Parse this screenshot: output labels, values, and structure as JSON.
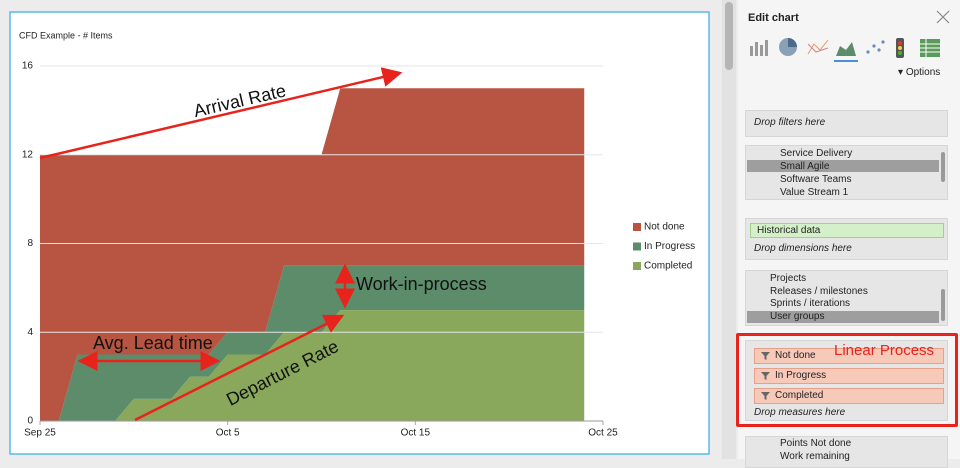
{
  "chart_data": {
    "type": "stacked_area",
    "title": "CFD Example - # Items",
    "x": [
      0,
      1,
      2,
      3,
      4,
      5,
      6,
      7,
      8,
      9,
      10,
      11,
      12,
      13,
      14,
      15,
      16,
      17,
      18,
      19,
      20,
      21,
      22,
      23,
      24,
      25,
      26,
      27,
      28,
      29
    ],
    "series": [
      {
        "name": "Not done",
        "color": "#b85542",
        "values": [
          12,
          12,
          9,
          9,
          9,
          9,
          9,
          9,
          9,
          9,
          8,
          8,
          8,
          5,
          5,
          5,
          8,
          8,
          8,
          8,
          8,
          8,
          8,
          8,
          8,
          8,
          8,
          8,
          8,
          8
        ]
      },
      {
        "name": "In Progress",
        "color": "#5c8c6a",
        "values": [
          0,
          0,
          3,
          3,
          3,
          2,
          2,
          2,
          1,
          1,
          1,
          1,
          1,
          3,
          3,
          3,
          2,
          2,
          2,
          2,
          2,
          2,
          2,
          2,
          2,
          2,
          2,
          2,
          2,
          2
        ]
      },
      {
        "name": "Completed",
        "color": "#8aa85c",
        "values": [
          0,
          0,
          0,
          0,
          0,
          1,
          1,
          1,
          2,
          2,
          3,
          3,
          3,
          4,
          4,
          4,
          5,
          5,
          5,
          5,
          5,
          5,
          5,
          5,
          5,
          5,
          5,
          5,
          5,
          5
        ]
      }
    ],
    "xlim": [
      0,
      30
    ],
    "xticks": [
      {
        "value": 0,
        "label": "Sep 25"
      },
      {
        "value": 10,
        "label": "Oct 5"
      },
      {
        "value": 20,
        "label": "Oct 15"
      },
      {
        "value": 30,
        "label": "Oct 25"
      }
    ],
    "ylim": [
      0,
      16
    ],
    "yticks": [
      0,
      4,
      8,
      12,
      16
    ],
    "grid": true,
    "legend": "right",
    "annotations": [
      "Arrival Rate",
      "Work-in-process",
      "Avg. Lead time",
      "Departure Rate"
    ]
  },
  "panel": {
    "title": "Edit chart",
    "options": "Options",
    "filters": {
      "placeholder": "Drop filters here",
      "items": [
        "Service Delivery",
        "Small Agile",
        "Software Teams",
        "Value Stream 1"
      ]
    },
    "dimensions": {
      "chip": "Historical data",
      "placeholder": "Drop dimensions here",
      "items": [
        "Projects",
        "Releases / milestones",
        "Sprints / iterations",
        "User groups"
      ]
    },
    "measures": {
      "items": [
        "Not done",
        "In Progress",
        "Completed"
      ],
      "placeholder": "Drop measures here",
      "note": "Linear Process"
    },
    "more": [
      "Points Not done",
      "Work remaining"
    ]
  }
}
